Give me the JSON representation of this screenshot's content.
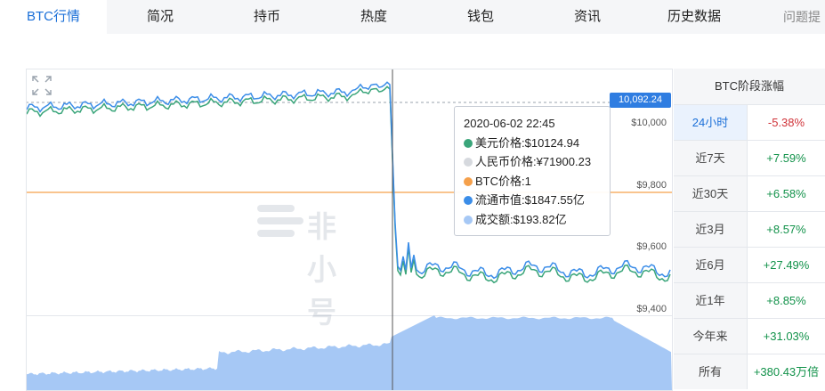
{
  "tabs": [
    {
      "label": "BTC行情",
      "active": true
    },
    {
      "label": "简况"
    },
    {
      "label": "持币"
    },
    {
      "label": "热度"
    },
    {
      "label": "钱包"
    },
    {
      "label": "资讯"
    },
    {
      "label": "历史数据"
    },
    {
      "label": "问题提"
    }
  ],
  "chart": {
    "y_ticks": [
      "$10,000",
      "$9,800",
      "$9,600",
      "$9,400"
    ],
    "current_price_label": "10,092.24",
    "watermark": "非小号",
    "colors": {
      "usd_line": "#3aa57a",
      "cny_line": "#2f7de1",
      "btc_line": "#f5a04b",
      "volume": "#a6c8f5"
    }
  },
  "chart_data": {
    "type": "line",
    "y_axis_range": [
      9400,
      10100
    ],
    "price_level_line": 9800,
    "hover_time": "2020-06-02 22:45",
    "series": [
      {
        "name": "美元价格",
        "color": "#3aa57a"
      },
      {
        "name": "人民币价格",
        "color": "#d6d9de"
      },
      {
        "name": "BTC价格",
        "color": "#f5a04b"
      },
      {
        "name": "流通市值",
        "color": "#3b8de8"
      },
      {
        "name": "成交额",
        "color": "#a6c8f5"
      }
    ]
  },
  "tooltip": {
    "time": "2020-06-02 22:45",
    "rows": [
      {
        "text": "美元价格:$10124.94",
        "color": "#3aa57a"
      },
      {
        "text": "人民币价格:¥71900.23",
        "color": "#d6d9de"
      },
      {
        "text": "BTC价格:1",
        "color": "#f5a04b"
      },
      {
        "text": "流通市值:$1847.55亿",
        "color": "#3b8de8"
      },
      {
        "text": "成交额:$193.82亿",
        "color": "#a6c8f5"
      }
    ]
  },
  "side_panel": {
    "title": "BTC阶段涨幅",
    "rows": [
      {
        "label": "24小时",
        "value": "-5.38%",
        "trend": "down",
        "selected": true
      },
      {
        "label": "近7天",
        "value": "+7.59%",
        "trend": "up"
      },
      {
        "label": "近30天",
        "value": "+6.58%",
        "trend": "up"
      },
      {
        "label": "近3月",
        "value": "+8.57%",
        "trend": "up"
      },
      {
        "label": "近6月",
        "value": "+27.49%",
        "trend": "up"
      },
      {
        "label": "近1年",
        "value": "+8.85%",
        "trend": "up"
      },
      {
        "label": "今年来",
        "value": "+31.03%",
        "trend": "up"
      },
      {
        "label": "所有",
        "value": "+380.43万倍",
        "trend": "up"
      }
    ]
  }
}
